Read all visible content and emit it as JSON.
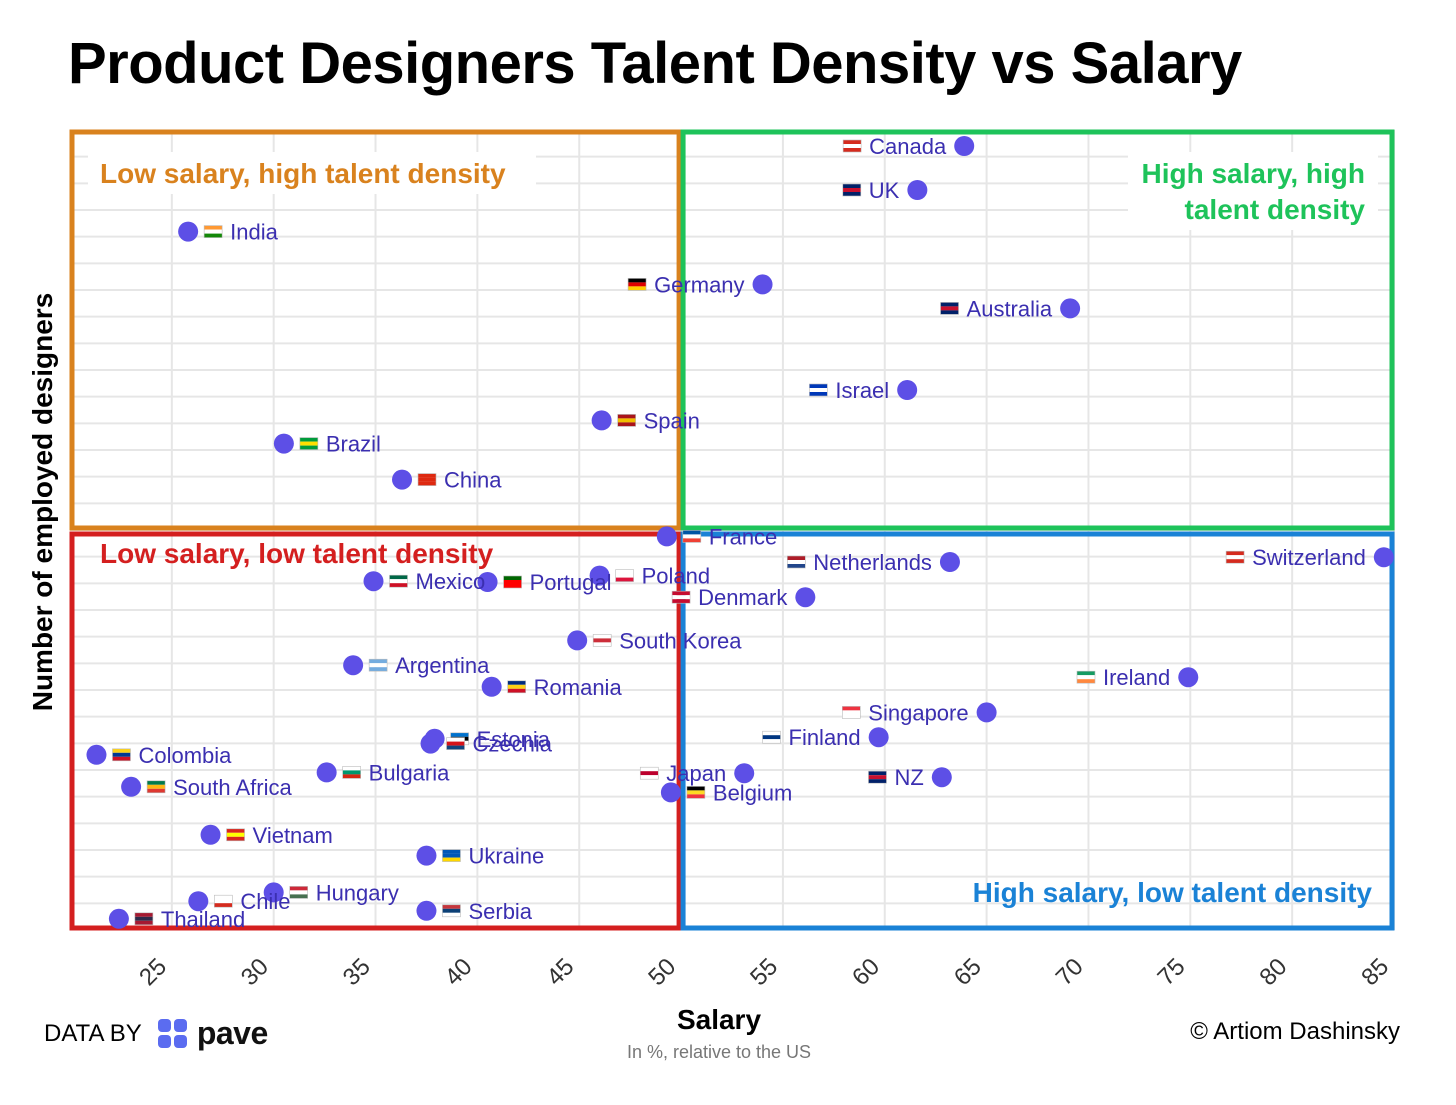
{
  "title": "Product Designers Talent Density vs Salary",
  "credits": {
    "data_by": "DATA BY",
    "brand": "pave",
    "author": "© Artiom Dashinsky"
  },
  "colors": {
    "point": "#5d4fe6",
    "label": "#3b2fb0",
    "grid": "#e6e6e6",
    "q_top_left": "#d9821e",
    "q_top_right": "#1ec35a",
    "q_bottom_left": "#d41f1f",
    "q_bottom_right": "#1a82d6"
  },
  "quadrants": {
    "top_left": "Low salary, high talent density",
    "top_right": [
      "High salary, high",
      "talent density"
    ],
    "bottom_left": "Low salary, low talent density",
    "bottom_right": "High salary, low talent density"
  },
  "chart_data": {
    "type": "scatter",
    "title": "Product Designers Talent Density vs Salary",
    "xlabel": "Salary",
    "xsublabel": "In %, relative to the US",
    "ylabel": "Number of employed designers",
    "xlim": [
      20,
      85
    ],
    "xticks": [
      "25",
      "30",
      "35",
      "40",
      "45",
      "50",
      "55",
      "60",
      "65",
      "70",
      "75",
      "80",
      "85"
    ],
    "ylim": [
      0,
      100
    ],
    "grid": true,
    "quadrant_split": {
      "x": 50,
      "y": 50
    },
    "points": [
      {
        "country": "Canada",
        "x": 63.9,
        "y": 98
      },
      {
        "country": "UK",
        "x": 61.6,
        "y": 92.5
      },
      {
        "country": "India",
        "x": 25.8,
        "y": 87.3
      },
      {
        "country": "Germany",
        "x": 54.0,
        "y": 80.7
      },
      {
        "country": "Australia",
        "x": 69.1,
        "y": 77.7
      },
      {
        "country": "Israel",
        "x": 61.1,
        "y": 67.5
      },
      {
        "country": "Spain",
        "x": 46.1,
        "y": 63.7
      },
      {
        "country": "Brazil",
        "x": 30.5,
        "y": 60.8
      },
      {
        "country": "China",
        "x": 36.3,
        "y": 56.3
      },
      {
        "country": "France",
        "x": 49.3,
        "y": 49.2
      },
      {
        "country": "Switzerland",
        "x": 84.5,
        "y": 46.6
      },
      {
        "country": "Netherlands",
        "x": 63.2,
        "y": 46.0
      },
      {
        "country": "Poland",
        "x": 46.0,
        "y": 44.3
      },
      {
        "country": "Mexico",
        "x": 34.9,
        "y": 43.6
      },
      {
        "country": "Portugal",
        "x": 40.5,
        "y": 43.5
      },
      {
        "country": "Denmark",
        "x": 56.1,
        "y": 41.6
      },
      {
        "country": "South Korea",
        "x": 44.9,
        "y": 36.2
      },
      {
        "country": "Argentina",
        "x": 33.9,
        "y": 33.1
      },
      {
        "country": "Ireland",
        "x": 74.9,
        "y": 31.6
      },
      {
        "country": "Romania",
        "x": 40.7,
        "y": 30.4
      },
      {
        "country": "Singapore",
        "x": 65.0,
        "y": 27.2
      },
      {
        "country": "Finland",
        "x": 59.7,
        "y": 24.1
      },
      {
        "country": "Estonia",
        "x": 37.9,
        "y": 23.9
      },
      {
        "country": "Czechia",
        "x": 37.7,
        "y": 23.3
      },
      {
        "country": "Colombia",
        "x": 21.3,
        "y": 21.9
      },
      {
        "country": "Bulgaria",
        "x": 32.6,
        "y": 19.7
      },
      {
        "country": "Japan",
        "x": 53.1,
        "y": 19.6
      },
      {
        "country": "NZ",
        "x": 62.8,
        "y": 19.1
      },
      {
        "country": "South Africa",
        "x": 23.0,
        "y": 17.9
      },
      {
        "country": "Belgium",
        "x": 49.5,
        "y": 17.2
      },
      {
        "country": "Vietnam",
        "x": 26.9,
        "y": 11.9
      },
      {
        "country": "Ukraine",
        "x": 37.5,
        "y": 9.3
      },
      {
        "country": "Hungary",
        "x": 30.0,
        "y": 4.7
      },
      {
        "country": "Chile",
        "x": 26.3,
        "y": 3.6
      },
      {
        "country": "Serbia",
        "x": 37.5,
        "y": 2.4
      },
      {
        "country": "Thailand",
        "x": 22.4,
        "y": 1.4
      }
    ]
  }
}
